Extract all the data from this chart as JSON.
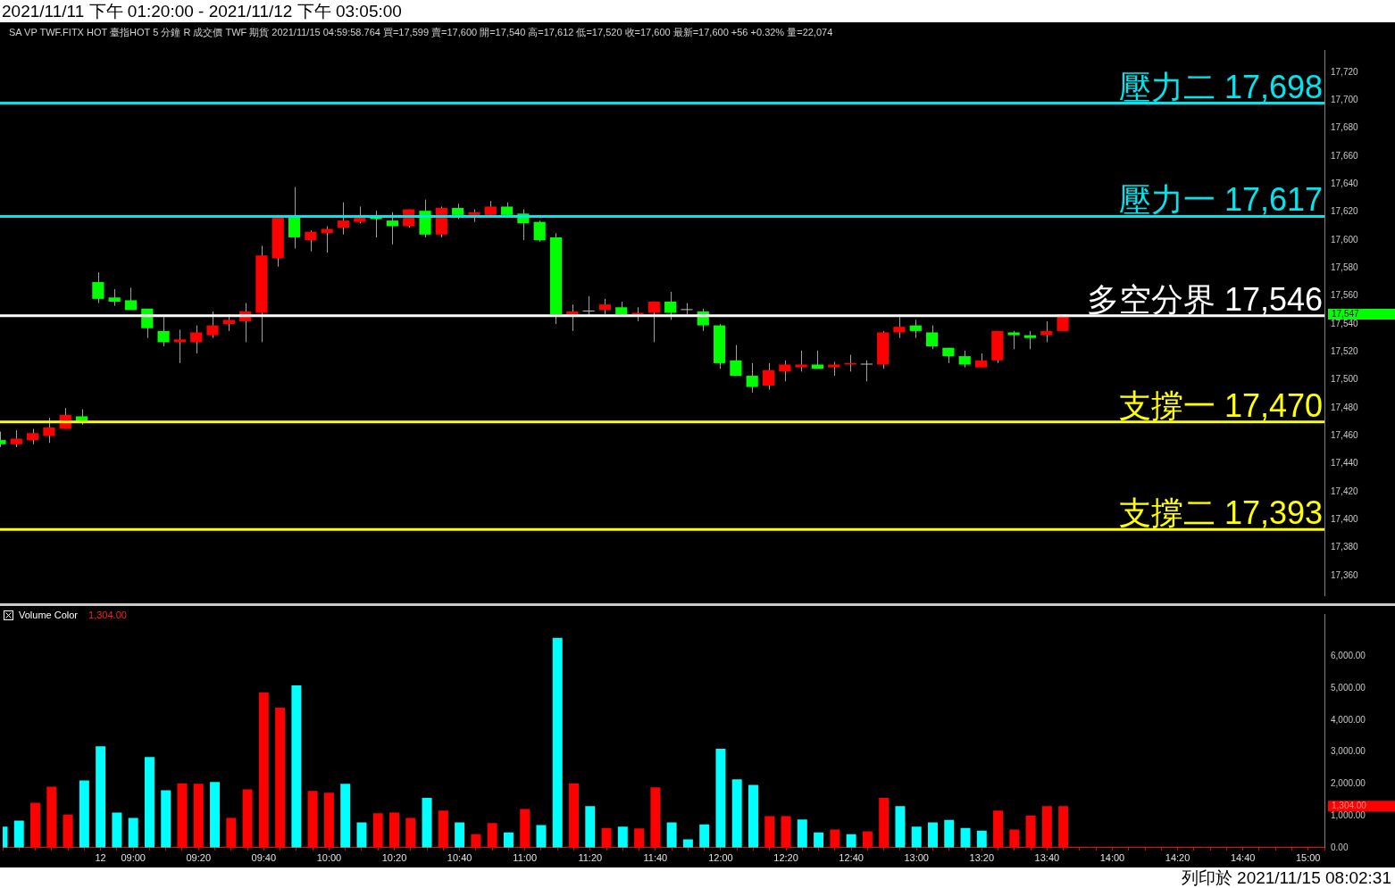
{
  "chart_data": [
    {
      "type": "candlestick",
      "title": "2021/11/11 下午 01:20:00 - 2021/11/12 下午 03:05:00",
      "subtitle": "SA VP TWF.FITX HOT 臺指HOT 5 分鐘 R 成交價 TWF 期貨 2021/11/15 04:59:58.764 買=17,599 賣=17,600 開=17,540 高=17,612 低=17,520 收=17,600 最新=17,600 +56 +0.32% 量=22,074",
      "categories": [
        null,
        null,
        null,
        null,
        null,
        null,
        null,
        null,
        null,
        null,
        null,
        null,
        null,
        null,
        null,
        null,
        null,
        null,
        null,
        null,
        null,
        null,
        null,
        null,
        null,
        null,
        null,
        null,
        null,
        null,
        null,
        null,
        null,
        null,
        null,
        null,
        null,
        null,
        null,
        null,
        null,
        null,
        null,
        null,
        null,
        null,
        null,
        null,
        null,
        null,
        null,
        null,
        null,
        null,
        null,
        null,
        null,
        null,
        null,
        null,
        null,
        null,
        null,
        null,
        null,
        null,
        null,
        null,
        null,
        null,
        null,
        null,
        null,
        null,
        null,
        null,
        null,
        null,
        null,
        null,
        null,
        null
      ],
      "ohlc": [
        [
          17457,
          17463,
          17452,
          17454
        ],
        [
          17454,
          17464,
          17452,
          17458
        ],
        [
          17457,
          17465,
          17454,
          17462
        ],
        [
          17460,
          17473,
          17455,
          17466
        ],
        [
          17465,
          17480,
          17465,
          17475
        ],
        [
          17474,
          17479,
          17468,
          17470
        ],
        [
          17570,
          17577,
          17555,
          17558
        ],
        [
          17559,
          17565,
          17553,
          17556
        ],
        [
          17557,
          17566,
          17550,
          17550
        ],
        [
          17551,
          17551,
          17530,
          17537
        ],
        [
          17535,
          17545,
          17524,
          17527
        ],
        [
          17527,
          17536,
          17512,
          17529
        ],
        [
          17527,
          17539,
          17519,
          17534
        ],
        [
          17532,
          17549,
          17530,
          17539
        ],
        [
          17540,
          17547,
          17535,
          17543
        ],
        [
          17542,
          17555,
          17527,
          17549
        ],
        [
          17548,
          17596,
          17527,
          17589
        ],
        [
          17587,
          17618,
          17581,
          17617
        ],
        [
          17617,
          17638,
          17594,
          17602
        ],
        [
          17600,
          17607,
          17592,
          17606
        ],
        [
          17605,
          17610,
          17591,
          17608
        ],
        [
          17609,
          17627,
          17604,
          17614
        ],
        [
          17613,
          17624,
          17612,
          17617
        ],
        [
          17617,
          17621,
          17602,
          17615
        ],
        [
          17614,
          17620,
          17597,
          17610
        ],
        [
          17610,
          17622,
          17609,
          17622
        ],
        [
          17621,
          17629,
          17602,
          17604
        ],
        [
          17604,
          17624,
          17602,
          17623
        ],
        [
          17623,
          17626,
          17615,
          17618
        ],
        [
          17618,
          17622,
          17613,
          17620
        ],
        [
          17618,
          17628,
          17618,
          17624
        ],
        [
          17624,
          17627,
          17618,
          17618
        ],
        [
          17619,
          17622,
          17600,
          17612
        ],
        [
          17613,
          17614,
          17599,
          17600
        ],
        [
          17602,
          17605,
          17540,
          17547
        ],
        [
          17547,
          17554,
          17535,
          17549
        ],
        [
          17549,
          17560,
          17546,
          17549
        ],
        [
          17550,
          17558,
          17547,
          17554
        ],
        [
          17552,
          17556,
          17546,
          17547
        ],
        [
          17547,
          17552,
          17542,
          17548
        ],
        [
          17548,
          17556,
          17527,
          17556
        ],
        [
          17556,
          17563,
          17543,
          17548
        ],
        [
          17550,
          17555,
          17547,
          17550
        ],
        [
          17549,
          17551,
          17535,
          17539
        ],
        [
          17539,
          17540,
          17508,
          17512
        ],
        [
          17514,
          17525,
          17503,
          17503
        ],
        [
          17503,
          17512,
          17491,
          17495
        ],
        [
          17496,
          17512,
          17493,
          17507
        ],
        [
          17506,
          17514,
          17499,
          17511
        ],
        [
          17509,
          17521,
          17506,
          17511
        ],
        [
          17511,
          17521,
          17508,
          17508
        ],
        [
          17509,
          17513,
          17503,
          17511
        ],
        [
          17511,
          17518,
          17506,
          17512
        ],
        [
          17511,
          17514,
          17499,
          17511
        ],
        [
          17511,
          17535,
          17508,
          17534
        ],
        [
          17534,
          17545,
          17530,
          17538
        ],
        [
          17539,
          17543,
          17530,
          17535
        ],
        [
          17534,
          17539,
          17522,
          17524
        ],
        [
          17523,
          17523,
          17512,
          17517
        ],
        [
          17517,
          17521,
          17509,
          17511
        ],
        [
          17509,
          17519,
          17509,
          17514
        ],
        [
          17514,
          17535,
          17512,
          17535
        ],
        [
          17534,
          17535,
          17522,
          17532
        ],
        [
          17532,
          17535,
          17522,
          17530
        ],
        [
          17532,
          17542,
          17527,
          17535
        ],
        [
          17535,
          17547,
          17535,
          17547
        ],
        null,
        null,
        null,
        null,
        null,
        null,
        null,
        null,
        null,
        null,
        null,
        null,
        null,
        null,
        null,
        null
      ],
      "colors": [
        "#00ff00",
        "#ff0000",
        "#ff0000",
        "#ff0000",
        "#ff0000",
        "#00ff00",
        "#00ff00",
        "#00ff00",
        "#00ff00",
        "#00ff00",
        "#00ff00",
        "#ff0000",
        "#ff0000",
        "#ff0000",
        "#ff0000",
        "#ff0000",
        "#ff0000",
        "#ff0000",
        "#00ff00",
        "#ff0000",
        "#ff0000",
        "#ff0000",
        "#ff0000",
        "#00ff00",
        "#00ff00",
        "#ff0000",
        "#00ff00",
        "#ff0000",
        "#00ff00",
        "#ff0000",
        "#ff0000",
        "#00ff00",
        "#00ff00",
        "#00ff00",
        "#00ff00",
        "#ff0000",
        "#c0c0c0",
        "#ff0000",
        "#00ff00",
        "#ff0000",
        "#ff0000",
        "#00ff00",
        "#c0c0c0",
        "#00ff00",
        "#00ff00",
        "#00ff00",
        "#00ff00",
        "#ff0000",
        "#ff0000",
        "#ff0000",
        "#00ff00",
        "#ff0000",
        "#ff0000",
        "#c0c0c0",
        "#ff0000",
        "#ff0000",
        "#00ff00",
        "#00ff00",
        "#00ff00",
        "#00ff00",
        "#ff0000",
        "#ff0000",
        "#00ff00",
        "#00ff00",
        "#ff0000",
        "#ff0000",
        null,
        null,
        null,
        null,
        null,
        null,
        null,
        null,
        null,
        null,
        null,
        null,
        null,
        null,
        null,
        null
      ],
      "ylim": [
        17346,
        17736
      ],
      "yticks": [
        {
          "value": 17360,
          "label": "17,360"
        },
        {
          "value": 17380,
          "label": "17,380"
        },
        {
          "value": 17400,
          "label": "17,400"
        },
        {
          "value": 17420,
          "label": "17,420"
        },
        {
          "value": 17440,
          "label": "17,440"
        },
        {
          "value": 17460,
          "label": "17,460"
        },
        {
          "value": 17480,
          "label": "17,480"
        },
        {
          "value": 17500,
          "label": "17,500"
        },
        {
          "value": 17520,
          "label": "17,520"
        },
        {
          "value": 17540,
          "label": "17,540"
        },
        {
          "value": 17560,
          "label": "17,560"
        },
        {
          "value": 17580,
          "label": "17,580"
        },
        {
          "value": 17600,
          "label": "17,600"
        },
        {
          "value": 17620,
          "label": "17,620"
        },
        {
          "value": 17640,
          "label": "17,640"
        },
        {
          "value": 17660,
          "label": "17,660"
        },
        {
          "value": 17680,
          "label": "17,680"
        },
        {
          "value": 17700,
          "label": "17,700"
        },
        {
          "value": 17720,
          "label": "17,720"
        }
      ],
      "ref_lines": [
        {
          "axis": "y",
          "value": 17698,
          "label": "壓力二 17,698",
          "color": "#00e5ee"
        },
        {
          "axis": "y",
          "value": 17617,
          "label": "壓力一 17,617",
          "color": "#00e5ee"
        },
        {
          "axis": "y",
          "value": 17546,
          "label": "多空分界 17,546",
          "color": "#ffffff"
        },
        {
          "axis": "y",
          "value": 17470,
          "label": "支撐一 17,470",
          "color": "#ffff00"
        },
        {
          "axis": "y",
          "value": 17393,
          "label": "支撐二 17,393",
          "color": "#ffff00"
        }
      ],
      "annotations": [
        "17,547",
        "列印於 2021/11/15 08:02:31"
      ],
      "tick_labels": "y"
    },
    {
      "type": "bar",
      "title": "Volume Color",
      "categories": [
        null,
        null,
        null,
        null,
        null,
        null,
        "12",
        null,
        "09:00",
        null,
        null,
        null,
        "09:20",
        null,
        null,
        null,
        "09:40",
        null,
        null,
        null,
        "10:00",
        null,
        null,
        null,
        "10:20",
        null,
        null,
        null,
        "10:40",
        null,
        null,
        null,
        "11:00",
        null,
        null,
        null,
        "11:20",
        null,
        null,
        null,
        "11:40",
        null,
        null,
        null,
        "12:00",
        null,
        null,
        null,
        "12:20",
        null,
        null,
        null,
        "12:40",
        null,
        null,
        null,
        "13:00",
        null,
        null,
        null,
        "13:20",
        null,
        null,
        null,
        "13:40",
        null,
        null,
        null,
        "14:00",
        null,
        null,
        null,
        "14:20",
        null,
        null,
        null,
        "14:40",
        null,
        null,
        null,
        "15:00",
        null
      ],
      "values": [
        660,
        850,
        1410,
        1910,
        1040,
        2110,
        3180,
        1100,
        930,
        2840,
        1800,
        2020,
        2000,
        2060,
        930,
        1830,
        4870,
        4390,
        5090,
        1780,
        1720,
        2000,
        790,
        1080,
        1100,
        930,
        1560,
        1160,
        790,
        420,
        770,
        480,
        1210,
        710,
        6580,
        2020,
        1300,
        620,
        660,
        600,
        1890,
        790,
        260,
        730,
        3100,
        2140,
        1970,
        990,
        990,
        880,
        480,
        570,
        420,
        510,
        1560,
        1300,
        660,
        790,
        870,
        620,
        530,
        1160,
        570,
        1010,
        1300,
        1304,
        null,
        null,
        null,
        null,
        null,
        null,
        null,
        null,
        null,
        null,
        null,
        null,
        null,
        null,
        null,
        null
      ],
      "colors": [
        "#00ffff",
        "#00ffff",
        "#ff0000",
        "#ff0000",
        "#ff0000",
        "#00ffff",
        "#00ffff",
        "#00ffff",
        "#00ffff",
        "#00ffff",
        "#00ffff",
        "#ff0000",
        "#ff0000",
        "#00ffff",
        "#ff0000",
        "#ff0000",
        "#ff0000",
        "#ff0000",
        "#00ffff",
        "#ff0000",
        "#ff0000",
        "#00ffff",
        "#00ffff",
        "#ff0000",
        "#ff0000",
        "#ff0000",
        "#00ffff",
        "#ff0000",
        "#00ffff",
        "#ff0000",
        "#ff0000",
        "#00ffff",
        "#ff0000",
        "#00ffff",
        "#00ffff",
        "#ff0000",
        "#00ffff",
        "#ff0000",
        "#00ffff",
        "#ff0000",
        "#ff0000",
        "#00ffff",
        "#00ffff",
        "#00ffff",
        "#00ffff",
        "#00ffff",
        "#00ffff",
        "#ff0000",
        "#ff0000",
        "#00ffff",
        "#00ffff",
        "#ff0000",
        "#00ffff",
        "#ff0000",
        "#ff0000",
        "#00ffff",
        "#00ffff",
        "#00ffff",
        "#00ffff",
        "#00ffff",
        "#00ffff",
        "#ff0000",
        "#ff0000",
        "#ff0000",
        "#ff0000",
        "#ff0000",
        null,
        null,
        null,
        null,
        null,
        null,
        null,
        null,
        null,
        null,
        null,
        null,
        null,
        null,
        null,
        null
      ],
      "ylim": [
        0,
        7330
      ],
      "yticks": [
        {
          "value": 0,
          "label": "0.00"
        },
        {
          "value": 1000,
          "label": "1,000.00"
        },
        {
          "value": 2000,
          "label": "2,000.00"
        },
        {
          "value": 3000,
          "label": "3,000.00"
        },
        {
          "value": 4000,
          "label": "4,000.00"
        },
        {
          "value": 5000,
          "label": "5,000.00"
        },
        {
          "value": 6000,
          "label": "6,000.00"
        }
      ],
      "annotations": [
        "1,304.00",
        "1,304.00"
      ]
    }
  ]
}
